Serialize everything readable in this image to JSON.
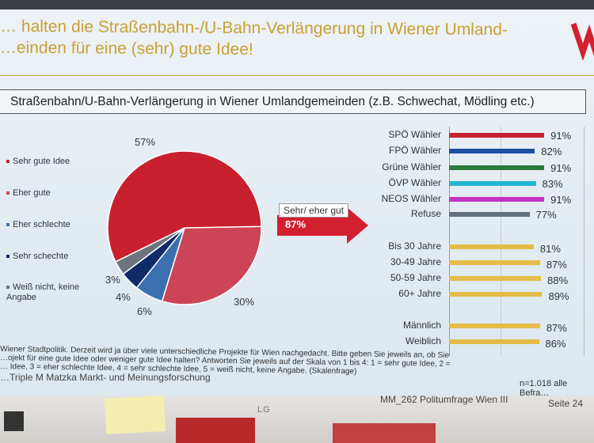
{
  "slide": {
    "title": "… halten die Straßenbahn-/U-Bahn-Verlängerung in Wiener Umland-\n…einden für eine (sehr) gute Idee!",
    "logo_text": "W",
    "subtitle": "Straßenbahn/U-Bahn-Verlängerung in Wiener Umlandgemeinden (z.B. Schwechat, Mödling etc.)",
    "arrow_label": "Sehr/ eher gut",
    "arrow_value": "87%",
    "question_note": "Wiener Stadtpolitik. Derzeit wird ja über viele unterschiedliche Projekte für Wien nachgedacht. Bitte geben Sie jeweils an, ob Sie\n…ojekt für eine gute Idee oder weniger gute Idee halten? Antworten Sie jeweils auf der Skala von 1 bis 4: 1 = sehr gute Idee, 2 =\n… Idee, 3 = eher schlechte Idee, 4 = sehr schlechte Idee, 5 = weiß nicht, keine Angabe. (Skalenfrage)",
    "source": "…Triple M Matzka Markt- und Meinungsforschung",
    "sample": "n=1.018 alle Befra…",
    "footer": "MM_262 Politumfrage Wien III",
    "page": "Seite 24",
    "monitor_brand": "LG"
  },
  "chart_data": [
    {
      "type": "pie",
      "categories": [
        "Sehr gute Idee",
        "Eher gute",
        "Eher schlechte",
        "Sehr schechte",
        "Weiß nicht, keine Angabe"
      ],
      "values": [
        57,
        30,
        6,
        4,
        3
      ],
      "labels": [
        "57%",
        "30%",
        "6%",
        "4%",
        "3%"
      ],
      "colors": [
        "#c8202e",
        "#cd4456",
        "#3a6fb0",
        "#0f2b68",
        "#6b7480"
      ],
      "legend": "left"
    },
    {
      "type": "bar",
      "orientation": "horizontal",
      "categories": [
        "SPÖ Wähler",
        "FPÖ Wähler",
        "Grüne Wähler",
        "ÖVP Wähler",
        "NEOS Wähler",
        "Refuse",
        "Bis 30 Jahre",
        "30-49 Jahre",
        "50-59 Jahre",
        "60+ Jahre",
        "Männlich",
        "Weiblich"
      ],
      "values": [
        91,
        82,
        91,
        83,
        91,
        77,
        81,
        87,
        88,
        89,
        87,
        86
      ],
      "labels": [
        "91%",
        "82%",
        "91%",
        "83%",
        "91%",
        "77%",
        "81%",
        "87%",
        "88%",
        "89%",
        "87%",
        "86%"
      ],
      "colors": [
        "#c8202e",
        "#1d4fa3",
        "#2a7a3a",
        "#22b5cf",
        "#c433c4",
        "#61717f",
        "#e3bd47",
        "#e3bd47",
        "#e3bd47",
        "#e3bd47",
        "#e3bd47",
        "#e3bd47"
      ],
      "xlim": [
        0,
        100
      ]
    }
  ]
}
